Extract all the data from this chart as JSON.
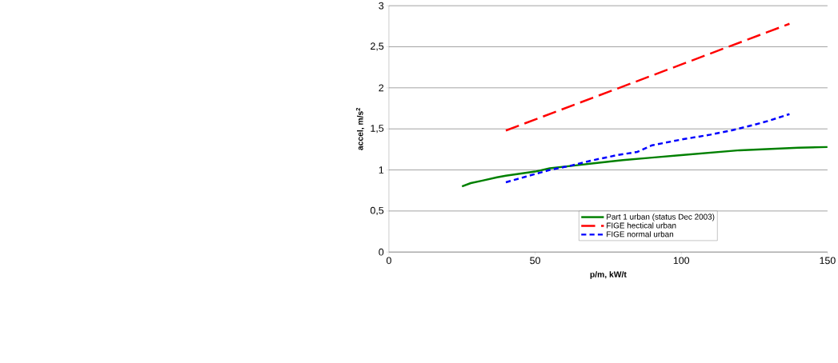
{
  "chart_data": {
    "type": "line",
    "xlabel": "p/m, kW/t",
    "ylabel": "accel, m/s$^{2}$",
    "xlim": [
      0,
      150
    ],
    "xticks": [
      0,
      50,
      100,
      150
    ],
    "ylim": [
      0,
      3
    ],
    "yticks": [
      0,
      {
        "value": 0.5,
        "label": "0,5"
      },
      1,
      {
        "value": 1.5,
        "label": "1,5"
      },
      2,
      {
        "value": 2.5,
        "label": "2,5"
      },
      3
    ],
    "grid": "y",
    "legend": "bottom right",
    "marker": "none",
    "series": [
      {
        "name": "Part 1 urban (status Dec 2003)",
        "color": "#008000",
        "line_style": "solid",
        "x": [
          25,
          28,
          32,
          37,
          40,
          50,
          55,
          65,
          70,
          75,
          80,
          90,
          100,
          120,
          140,
          150
        ],
        "values": [
          0.8,
          0.84,
          0.87,
          0.91,
          0.93,
          0.98,
          1.02,
          1.06,
          1.08,
          1.1,
          1.12,
          1.15,
          1.18,
          1.24,
          1.27,
          1.28
        ]
      },
      {
        "name": "FIGE hectical urban",
        "color": "#ff0000",
        "line_style": "dashed",
        "x": [
          40,
          137
        ],
        "values": [
          1.48,
          2.78
        ]
      },
      {
        "name": "FIGE normal urban",
        "color": "#0000ff",
        "line_style": "dotted",
        "x": [
          40,
          47,
          55,
          62,
          70,
          78,
          85,
          90,
          100,
          110,
          117,
          125,
          130,
          137
        ],
        "values": [
          0.85,
          0.92,
          1.0,
          1.05,
          1.12,
          1.18,
          1.22,
          1.3,
          1.37,
          1.43,
          1.48,
          1.55,
          1.6,
          1.68
        ]
      }
    ]
  }
}
